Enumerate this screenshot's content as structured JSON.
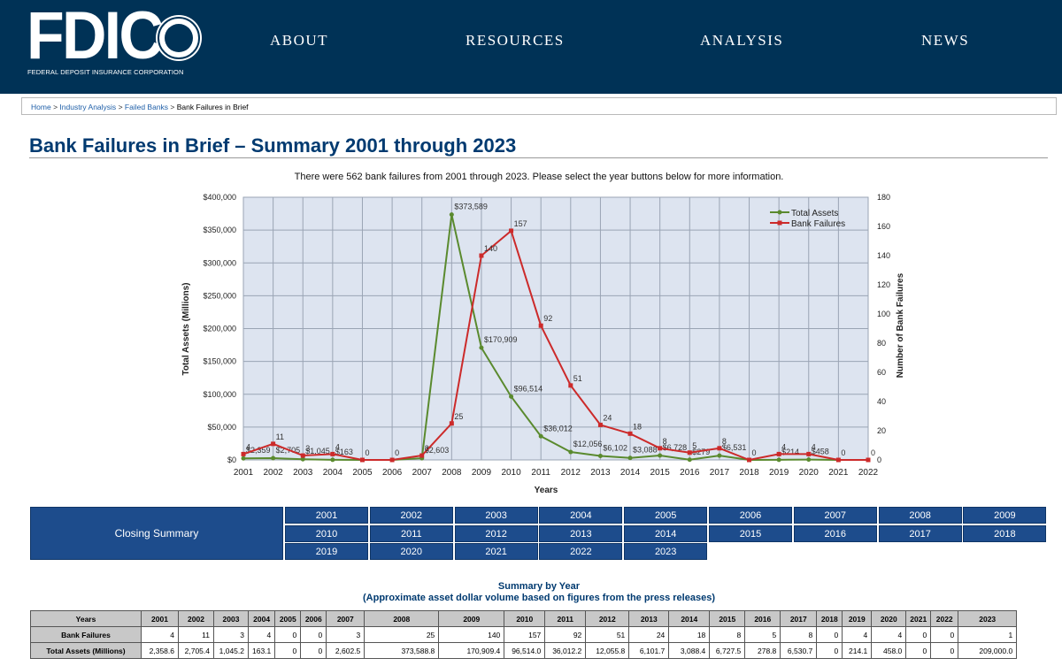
{
  "header": {
    "logo_text": "FDIC",
    "logo_subtitle": "FEDERAL DEPOSIT INSURANCE CORPORATION",
    "nav": [
      "ABOUT",
      "RESOURCES",
      "ANALYSIS",
      "NEWS"
    ]
  },
  "breadcrumb": {
    "items": [
      "Home",
      "Industry Analysis",
      "Failed Banks"
    ],
    "current": "Bank Failures in Brief",
    "separator": ">"
  },
  "page": {
    "title": "Bank Failures in Brief – Summary 2001 through 2023",
    "intro": "There were 562 bank failures from 2001 through 2023. Please select the year buttons below for more information."
  },
  "chart_data": {
    "type": "line",
    "title": "",
    "xlabel": "Years",
    "ylabel_left": "Total Assets (Millions)",
    "ylabel_right": "Number of Bank Failures",
    "x": [
      "2001",
      "2002",
      "2003",
      "2004",
      "2005",
      "2006",
      "2007",
      "2008",
      "2009",
      "2010",
      "2011",
      "2012",
      "2013",
      "2014",
      "2015",
      "2016",
      "2017",
      "2018",
      "2019",
      "2020",
      "2021",
      "2022"
    ],
    "ylim_left": [
      0,
      400000
    ],
    "ylim_right": [
      0,
      180
    ],
    "yticks_left": [
      "$0",
      "$50,000",
      "$100,000",
      "$150,000",
      "$200,000",
      "$250,000",
      "$300,000",
      "$350,000",
      "$400,000"
    ],
    "yticks_right": [
      "0",
      "20",
      "40",
      "60",
      "80",
      "100",
      "120",
      "140",
      "160",
      "180"
    ],
    "grid": true,
    "legend_position": "top-right",
    "series": [
      {
        "name": "Total Assets",
        "axis": "left",
        "color": "#5a8a2e",
        "values": [
          2358.6,
          2705.4,
          1045.2,
          163.1,
          0,
          0,
          2602.5,
          373588.8,
          170909.4,
          96514.0,
          36012.2,
          12055.8,
          6101.7,
          3088.4,
          6727.5,
          278.8,
          6530.7,
          0,
          214.1,
          458.0,
          0,
          0
        ],
        "labels": [
          "$2,359",
          "$2,705",
          "$1,045",
          "$163",
          "",
          "",
          "$2,603",
          "$373,589",
          "$170,909",
          "$96,514",
          "$36,012",
          "$12,056",
          "$6,102",
          "$3,088",
          "$6,728",
          "$279",
          "$6,531",
          "",
          "$214",
          "$458",
          "",
          ""
        ]
      },
      {
        "name": "Bank Failures",
        "axis": "right",
        "color": "#cc2a2a",
        "values": [
          4,
          11,
          3,
          4,
          0,
          0,
          3,
          25,
          140,
          157,
          92,
          51,
          24,
          18,
          8,
          5,
          8,
          0,
          4,
          4,
          0,
          0
        ],
        "labels": [
          "4",
          "11",
          "3",
          "4",
          "0",
          "0",
          "3",
          "25",
          "140",
          "157",
          "92",
          "51",
          "24",
          "18",
          "8",
          "5",
          "8",
          "0",
          "4",
          "4",
          "0",
          "0"
        ]
      }
    ]
  },
  "year_nav": {
    "closing_summary": "Closing Summary",
    "years": [
      "2001",
      "2002",
      "2003",
      "2004",
      "2005",
      "2006",
      "2007",
      "2008",
      "2009",
      "2010",
      "2011",
      "2012",
      "2013",
      "2014",
      "2015",
      "2016",
      "2017",
      "2018",
      "2019",
      "2020",
      "2021",
      "2022",
      "2023"
    ]
  },
  "summary": {
    "title": "Summary by Year",
    "subtitle": "(Approximate asset dollar volume based on figures from the press releases)",
    "header": [
      "Years",
      "2001",
      "2002",
      "2003",
      "2004",
      "2005",
      "2006",
      "2007",
      "2008",
      "2009",
      "2010",
      "2011",
      "2012",
      "2013",
      "2014",
      "2015",
      "2016",
      "2017",
      "2018",
      "2019",
      "2020",
      "2021",
      "2022",
      "2023"
    ],
    "rows": [
      {
        "label": "Bank Failures",
        "values": [
          "4",
          "11",
          "3",
          "4",
          "0",
          "0",
          "3",
          "25",
          "140",
          "157",
          "92",
          "51",
          "24",
          "18",
          "8",
          "5",
          "8",
          "0",
          "4",
          "4",
          "0",
          "0",
          "1"
        ]
      },
      {
        "label": "Total Assets (Millions)",
        "values": [
          "2,358.6",
          "2,705.4",
          "1,045.2",
          "163.1",
          "0",
          "0",
          "2,602.5",
          "373,588.8",
          "170,909.4",
          "96,514.0",
          "36,012.2",
          "12,055.8",
          "6,101.7",
          "3,088.4",
          "6,727.5",
          "278.8",
          "6,530.7",
          "0",
          "214.1",
          "458.0",
          "0",
          "0",
          "209,000.0"
        ]
      }
    ]
  }
}
